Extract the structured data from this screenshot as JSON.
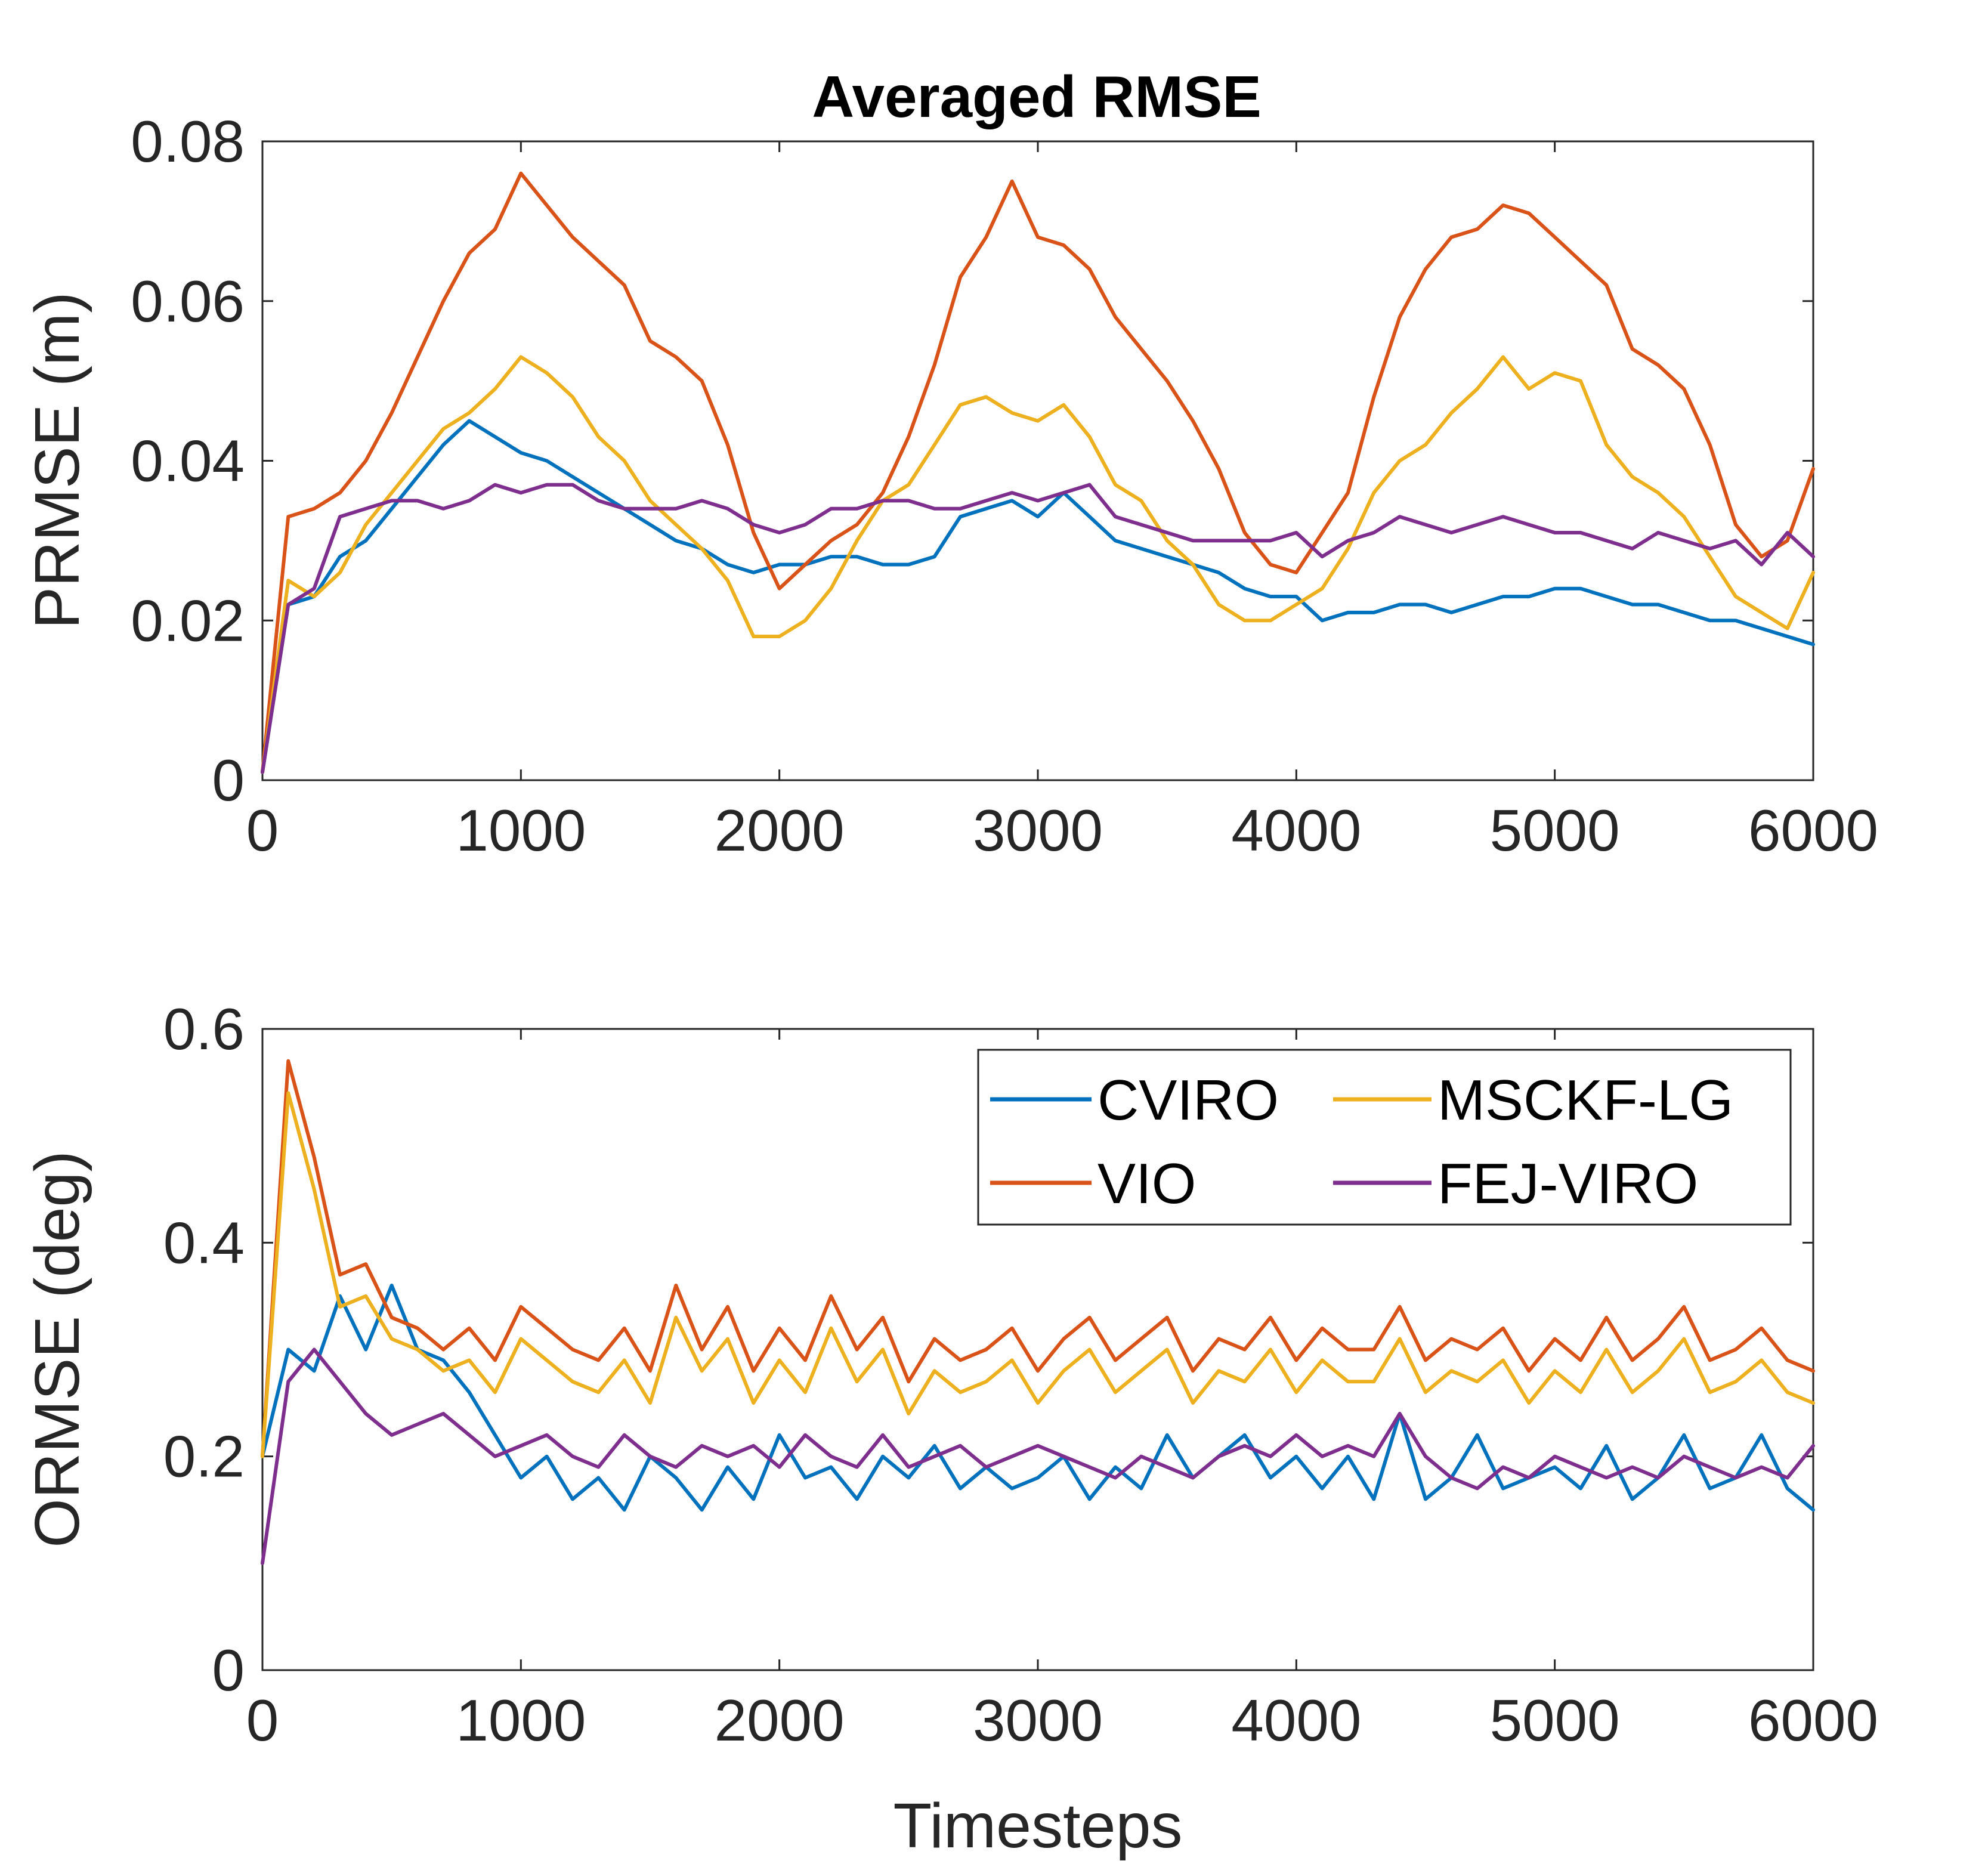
{
  "chart_data": [
    {
      "type": "line",
      "title": "Averaged RMSE",
      "xlabel": "",
      "ylabel": "PRMSE (m)",
      "xlim": [
        0,
        6000
      ],
      "ylim": [
        0,
        0.08
      ],
      "xticks": [
        0,
        1000,
        2000,
        3000,
        4000,
        5000,
        6000
      ],
      "xtick_labels": [
        "0",
        "1000",
        "2000",
        "3000",
        "4000",
        "5000",
        "6000"
      ],
      "yticks": [
        0,
        0.02,
        0.04,
        0.06,
        0.08
      ],
      "ytick_labels": [
        "0",
        "0.02",
        "0.04",
        "0.06",
        "0.08"
      ],
      "grid": false,
      "x": [
        0,
        100,
        200,
        300,
        400,
        500,
        600,
        700,
        800,
        900,
        1000,
        1100,
        1200,
        1300,
        1400,
        1500,
        1600,
        1700,
        1800,
        1900,
        2000,
        2100,
        2200,
        2300,
        2400,
        2500,
        2600,
        2700,
        2800,
        2900,
        3000,
        3100,
        3200,
        3300,
        3400,
        3500,
        3600,
        3700,
        3800,
        3900,
        4000,
        4100,
        4200,
        4300,
        4400,
        4500,
        4600,
        4700,
        4800,
        4900,
        5000,
        5100,
        5200,
        5300,
        5400,
        5500,
        5600,
        5700,
        5800,
        5900,
        6000
      ],
      "series": [
        {
          "name": "CVIRO",
          "color": "#0072BD",
          "values": [
            0.001,
            0.022,
            0.023,
            0.028,
            0.03,
            0.034,
            0.038,
            0.042,
            0.045,
            0.043,
            0.041,
            0.04,
            0.038,
            0.036,
            0.034,
            0.032,
            0.03,
            0.029,
            0.027,
            0.026,
            0.027,
            0.027,
            0.028,
            0.028,
            0.027,
            0.027,
            0.028,
            0.033,
            0.034,
            0.035,
            0.033,
            0.036,
            0.033,
            0.03,
            0.029,
            0.028,
            0.027,
            0.026,
            0.024,
            0.023,
            0.023,
            0.02,
            0.021,
            0.021,
            0.022,
            0.022,
            0.021,
            0.022,
            0.023,
            0.023,
            0.024,
            0.024,
            0.023,
            0.022,
            0.022,
            0.021,
            0.02,
            0.02,
            0.019,
            0.018,
            0.017
          ]
        },
        {
          "name": "VIO",
          "color": "#D95319",
          "values": [
            0.001,
            0.033,
            0.034,
            0.036,
            0.04,
            0.046,
            0.053,
            0.06,
            0.066,
            0.069,
            0.076,
            0.072,
            0.068,
            0.065,
            0.062,
            0.055,
            0.053,
            0.05,
            0.042,
            0.031,
            0.024,
            0.027,
            0.03,
            0.032,
            0.036,
            0.043,
            0.052,
            0.063,
            0.068,
            0.075,
            0.068,
            0.067,
            0.064,
            0.058,
            0.054,
            0.05,
            0.045,
            0.039,
            0.031,
            0.027,
            0.026,
            0.031,
            0.036,
            0.048,
            0.058,
            0.064,
            0.068,
            0.069,
            0.072,
            0.071,
            0.068,
            0.065,
            0.062,
            0.054,
            0.052,
            0.049,
            0.042,
            0.032,
            0.028,
            0.03,
            0.039
          ]
        },
        {
          "name": "MSCKF-LG",
          "color": "#EDB120",
          "values": [
            0.001,
            0.025,
            0.023,
            0.026,
            0.032,
            0.036,
            0.04,
            0.044,
            0.046,
            0.049,
            0.053,
            0.051,
            0.048,
            0.043,
            0.04,
            0.035,
            0.032,
            0.029,
            0.025,
            0.018,
            0.018,
            0.02,
            0.024,
            0.03,
            0.035,
            0.037,
            0.042,
            0.047,
            0.048,
            0.046,
            0.045,
            0.047,
            0.043,
            0.037,
            0.035,
            0.03,
            0.027,
            0.022,
            0.02,
            0.02,
            0.022,
            0.024,
            0.029,
            0.036,
            0.04,
            0.042,
            0.046,
            0.049,
            0.053,
            0.049,
            0.051,
            0.05,
            0.042,
            0.038,
            0.036,
            0.033,
            0.028,
            0.023,
            0.021,
            0.019,
            0.026
          ]
        },
        {
          "name": "FEJ-VIRO",
          "color": "#7E2F8E",
          "values": [
            0.001,
            0.022,
            0.024,
            0.033,
            0.034,
            0.035,
            0.035,
            0.034,
            0.035,
            0.037,
            0.036,
            0.037,
            0.037,
            0.035,
            0.034,
            0.034,
            0.034,
            0.035,
            0.034,
            0.032,
            0.031,
            0.032,
            0.034,
            0.034,
            0.035,
            0.035,
            0.034,
            0.034,
            0.035,
            0.036,
            0.035,
            0.036,
            0.037,
            0.033,
            0.032,
            0.031,
            0.03,
            0.03,
            0.03,
            0.03,
            0.031,
            0.028,
            0.03,
            0.031,
            0.033,
            0.032,
            0.031,
            0.032,
            0.033,
            0.032,
            0.031,
            0.031,
            0.03,
            0.029,
            0.031,
            0.03,
            0.029,
            0.03,
            0.027,
            0.031,
            0.028
          ]
        }
      ]
    },
    {
      "type": "line",
      "title": "",
      "xlabel": "Timesteps",
      "ylabel": "ORMSE (deg)",
      "xlim": [
        0,
        6000
      ],
      "ylim": [
        0,
        0.6
      ],
      "xticks": [
        0,
        1000,
        2000,
        3000,
        4000,
        5000,
        6000
      ],
      "xtick_labels": [
        "0",
        "1000",
        "2000",
        "3000",
        "4000",
        "5000",
        "6000"
      ],
      "yticks": [
        0,
        0.2,
        0.4,
        0.6
      ],
      "ytick_labels": [
        "0",
        "0.2",
        "0.4",
        "0.6"
      ],
      "grid": false,
      "legend_placement": "top-right",
      "legend_columns": 2,
      "x": [
        0,
        100,
        200,
        300,
        400,
        500,
        600,
        700,
        800,
        900,
        1000,
        1100,
        1200,
        1300,
        1400,
        1500,
        1600,
        1700,
        1800,
        1900,
        2000,
        2100,
        2200,
        2300,
        2400,
        2500,
        2600,
        2700,
        2800,
        2900,
        3000,
        3100,
        3200,
        3300,
        3400,
        3500,
        3600,
        3700,
        3800,
        3900,
        4000,
        4100,
        4200,
        4300,
        4400,
        4500,
        4600,
        4700,
        4800,
        4900,
        5000,
        5100,
        5200,
        5300,
        5400,
        5500,
        5600,
        5700,
        5800,
        5900,
        6000
      ],
      "series": [
        {
          "name": "CVIRO",
          "color": "#0072BD",
          "values": [
            0.2,
            0.3,
            0.28,
            0.35,
            0.3,
            0.36,
            0.3,
            0.29,
            0.26,
            0.22,
            0.18,
            0.2,
            0.16,
            0.18,
            0.15,
            0.2,
            0.18,
            0.15,
            0.19,
            0.16,
            0.22,
            0.18,
            0.19,
            0.16,
            0.2,
            0.18,
            0.21,
            0.17,
            0.19,
            0.17,
            0.18,
            0.2,
            0.16,
            0.19,
            0.17,
            0.22,
            0.18,
            0.2,
            0.22,
            0.18,
            0.2,
            0.17,
            0.2,
            0.16,
            0.24,
            0.16,
            0.18,
            0.22,
            0.17,
            0.18,
            0.19,
            0.17,
            0.21,
            0.16,
            0.18,
            0.22,
            0.17,
            0.18,
            0.22,
            0.17,
            0.15
          ]
        },
        {
          "name": "VIO",
          "color": "#D95319",
          "values": [
            0.2,
            0.57,
            0.48,
            0.37,
            0.38,
            0.33,
            0.32,
            0.3,
            0.32,
            0.29,
            0.34,
            0.32,
            0.3,
            0.29,
            0.32,
            0.28,
            0.36,
            0.3,
            0.34,
            0.28,
            0.32,
            0.29,
            0.35,
            0.3,
            0.33,
            0.27,
            0.31,
            0.29,
            0.3,
            0.32,
            0.28,
            0.31,
            0.33,
            0.29,
            0.31,
            0.33,
            0.28,
            0.31,
            0.3,
            0.33,
            0.29,
            0.32,
            0.3,
            0.3,
            0.34,
            0.29,
            0.31,
            0.3,
            0.32,
            0.28,
            0.31,
            0.29,
            0.33,
            0.29,
            0.31,
            0.34,
            0.29,
            0.3,
            0.32,
            0.29,
            0.28
          ]
        },
        {
          "name": "MSCKF-LG",
          "color": "#EDB120",
          "values": [
            0.2,
            0.54,
            0.45,
            0.34,
            0.35,
            0.31,
            0.3,
            0.28,
            0.29,
            0.26,
            0.31,
            0.29,
            0.27,
            0.26,
            0.29,
            0.25,
            0.33,
            0.28,
            0.31,
            0.25,
            0.29,
            0.26,
            0.32,
            0.27,
            0.3,
            0.24,
            0.28,
            0.26,
            0.27,
            0.29,
            0.25,
            0.28,
            0.3,
            0.26,
            0.28,
            0.3,
            0.25,
            0.28,
            0.27,
            0.3,
            0.26,
            0.29,
            0.27,
            0.27,
            0.31,
            0.26,
            0.28,
            0.27,
            0.29,
            0.25,
            0.28,
            0.26,
            0.3,
            0.26,
            0.28,
            0.31,
            0.26,
            0.27,
            0.29,
            0.26,
            0.25
          ]
        },
        {
          "name": "FEJ-VIRO",
          "color": "#7E2F8E",
          "values": [
            0.1,
            0.27,
            0.3,
            0.27,
            0.24,
            0.22,
            0.23,
            0.24,
            0.22,
            0.2,
            0.21,
            0.22,
            0.2,
            0.19,
            0.22,
            0.2,
            0.19,
            0.21,
            0.2,
            0.21,
            0.19,
            0.22,
            0.2,
            0.19,
            0.22,
            0.19,
            0.2,
            0.21,
            0.19,
            0.2,
            0.21,
            0.2,
            0.19,
            0.18,
            0.2,
            0.19,
            0.18,
            0.2,
            0.21,
            0.2,
            0.22,
            0.2,
            0.21,
            0.2,
            0.24,
            0.2,
            0.18,
            0.17,
            0.19,
            0.18,
            0.2,
            0.19,
            0.18,
            0.19,
            0.18,
            0.2,
            0.19,
            0.18,
            0.19,
            0.18,
            0.21
          ]
        }
      ]
    }
  ]
}
